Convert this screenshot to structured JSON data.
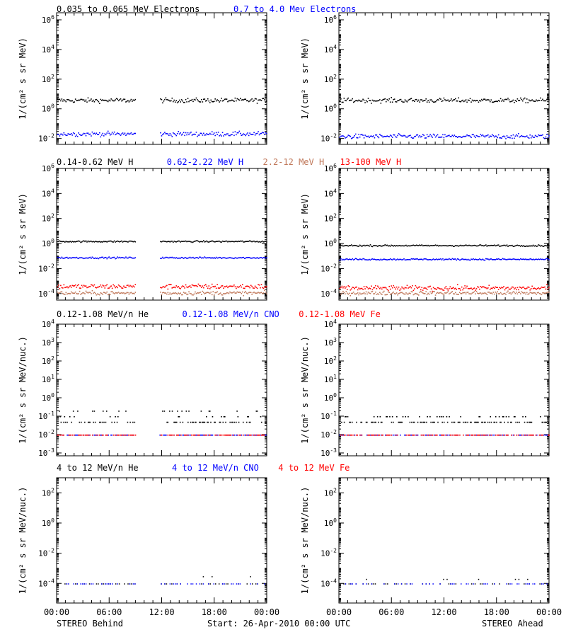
{
  "colors": {
    "black": "#000000",
    "blue": "#0000ff",
    "brown": "#c0785a",
    "red": "#ff0000",
    "magenta": "#a000a0"
  },
  "footer": {
    "left": "STEREO Behind",
    "center": "Start: 26-Apr-2010 00:00 UTC",
    "right": "STEREO Ahead"
  },
  "chart_data": [
    {
      "type": "scatter",
      "panel": "electrons",
      "spacecraft": "STEREO Behind",
      "title_items": [
        {
          "text": "0.035 to 0.065 MeV Electrons",
          "color": "#000000"
        },
        {
          "text": "0.7 to 4.0 Mev Electrons",
          "color": "#0000ff"
        }
      ],
      "ylabel": "1/(cm² s sr MeV)",
      "yscale": "log",
      "ylim": [
        0.004,
        3000000
      ],
      "yticks": [
        0.01,
        1,
        100,
        10000,
        1000000
      ],
      "xlim": [
        0,
        24
      ],
      "xtick_labels": [
        "00:00",
        "06:00",
        "12:00",
        "18:00",
        "00:00"
      ],
      "data_gap_hours": [
        9.0,
        11.7
      ],
      "series": [
        {
          "color": "#000000",
          "level": 4.0,
          "scatter_decades": 0.15
        },
        {
          "color": "#0000ff",
          "level": 0.022,
          "scatter_decades": 0.15
        }
      ]
    },
    {
      "type": "scatter",
      "panel": "electrons",
      "spacecraft": "STEREO Ahead",
      "ylabel": "1/(cm² s sr MeV)",
      "yscale": "log",
      "ylim": [
        0.004,
        3000000
      ],
      "yticks": [
        0.01,
        1,
        100,
        10000,
        1000000
      ],
      "xlim": [
        0,
        24
      ],
      "xtick_labels": [
        "00:00",
        "06:00",
        "12:00",
        "18:00",
        "00:00"
      ],
      "data_gap_hours": [],
      "series": [
        {
          "color": "#000000",
          "level": 4.0,
          "scatter_decades": 0.15
        },
        {
          "color": "#0000ff",
          "level": 0.015,
          "scatter_decades": 0.15
        }
      ]
    },
    {
      "type": "scatter",
      "panel": "protons",
      "spacecraft": "STEREO Behind",
      "title_items": [
        {
          "text": "0.14-0.62 MeV H",
          "color": "#000000"
        },
        {
          "text": "0.62-2.22 MeV H",
          "color": "#0000ff"
        },
        {
          "text": "2.2-12 MeV H",
          "color": "#c0785a"
        },
        {
          "text": "13-100 MeV H",
          "color": "#ff0000"
        }
      ],
      "ylabel": "1/(cm² s sr MeV)",
      "yscale": "log",
      "ylim": [
        3e-05,
        1000000
      ],
      "yticks": [
        0.0001,
        0.01,
        1,
        100,
        10000,
        1000000
      ],
      "xlim": [
        0,
        24
      ],
      "xtick_labels": [
        "00:00",
        "06:00",
        "12:00",
        "18:00",
        "00:00"
      ],
      "data_gap_hours": [
        9.0,
        11.7
      ],
      "series": [
        {
          "color": "#000000",
          "level": 1.6,
          "scatter_decades": 0.06
        },
        {
          "color": "#0000ff",
          "level": 0.08,
          "scatter_decades": 0.06
        },
        {
          "color": "#ff0000",
          "level": 0.0004,
          "scatter_decades": 0.2
        },
        {
          "color": "#c0785a",
          "level": 0.00012,
          "scatter_decades": 0.15
        }
      ]
    },
    {
      "type": "scatter",
      "panel": "protons",
      "spacecraft": "STEREO Ahead",
      "ylabel": "1/(cm² s sr MeV)",
      "yscale": "log",
      "ylim": [
        3e-05,
        1000000
      ],
      "yticks": [
        0.0001,
        0.01,
        1,
        100,
        10000,
        1000000
      ],
      "xlim": [
        0,
        24
      ],
      "xtick_labels": [
        "00:00",
        "06:00",
        "12:00",
        "18:00",
        "00:00"
      ],
      "data_gap_hours": [],
      "series": [
        {
          "color": "#000000",
          "level": 0.75,
          "scatter_decades": 0.06
        },
        {
          "color": "#0000ff",
          "level": 0.06,
          "scatter_decades": 0.06
        },
        {
          "color": "#ff0000",
          "level": 0.0003,
          "scatter_decades": 0.2
        },
        {
          "color": "#c0785a",
          "level": 0.00012,
          "scatter_decades": 0.15
        }
      ]
    },
    {
      "type": "scatter",
      "panel": "low_energy_ions",
      "spacecraft": "STEREO Behind",
      "title_items": [
        {
          "text": "0.12-1.08 MeV/n He",
          "color": "#000000"
        },
        {
          "text": "0.12-1.08 MeV/n CNO",
          "color": "#0000ff"
        },
        {
          "text": "0.12-1.08 MeV Fe",
          "color": "#ff0000"
        }
      ],
      "ylabel": "1/(cm² s sr MeV/nuc.)",
      "yscale": "log",
      "ylim": [
        0.0007,
        10000
      ],
      "yticks": [
        0.001,
        0.01,
        0.1,
        1,
        10,
        100,
        1000,
        10000
      ],
      "xlim": [
        0,
        24
      ],
      "xtick_labels": [
        "00:00",
        "06:00",
        "12:00",
        "18:00",
        "00:00"
      ],
      "data_gap_hours": [
        9.0,
        11.7
      ],
      "series": [
        {
          "color": "#000000",
          "levels": [
            0.05,
            0.1,
            0.2
          ],
          "mode": "quantized"
        },
        {
          "color": "#0000ff",
          "levels": [
            0.01
          ],
          "mode": "quantized"
        },
        {
          "color": "#ff0000",
          "levels": [
            0.01
          ],
          "mode": "quantized"
        }
      ]
    },
    {
      "type": "scatter",
      "panel": "low_energy_ions",
      "spacecraft": "STEREO Ahead",
      "ylabel": "1/(cm² s sr MeV/nuc.)",
      "yscale": "log",
      "ylim": [
        0.0007,
        10000
      ],
      "yticks": [
        0.001,
        0.01,
        0.1,
        1,
        10,
        100,
        1000,
        10000
      ],
      "xlim": [
        0,
        24
      ],
      "xtick_labels": [
        "00:00",
        "06:00",
        "12:00",
        "18:00",
        "00:00"
      ],
      "data_gap_hours": [],
      "series": [
        {
          "color": "#000000",
          "levels": [
            0.05,
            0.1
          ],
          "mode": "quantized"
        },
        {
          "color": "#0000ff",
          "levels": [
            0.01
          ],
          "mode": "quantized"
        },
        {
          "color": "#ff0000",
          "levels": [
            0.01
          ],
          "mode": "quantized"
        }
      ]
    },
    {
      "type": "scatter",
      "panel": "high_energy_ions",
      "spacecraft": "STEREO Behind",
      "title_items": [
        {
          "text": "4 to 12 MeV/n He",
          "color": "#000000"
        },
        {
          "text": "4 to 12 MeV/n CNO",
          "color": "#0000ff"
        },
        {
          "text": "4 to 12 MeV Fe",
          "color": "#ff0000"
        }
      ],
      "ylabel": "1/(cm² s sr MeV/nuc.)",
      "yscale": "log",
      "ylim": [
        5e-06,
        1000
      ],
      "yticks": [
        0.0001,
        0.01,
        1,
        100
      ],
      "xlim": [
        0,
        24
      ],
      "xtick_labels": [
        "00:00",
        "06:00",
        "12:00",
        "18:00",
        "00:00"
      ],
      "data_gap_hours": [
        9.0,
        11.7
      ],
      "series": [
        {
          "color": "#000000",
          "levels": [
            0.0001,
            0.0003
          ],
          "mode": "sparse"
        },
        {
          "color": "#0000ff",
          "levels": [
            0.0001
          ],
          "mode": "sparse"
        }
      ]
    },
    {
      "type": "scatter",
      "panel": "high_energy_ions",
      "spacecraft": "STEREO Ahead",
      "ylabel": "1/(cm² s sr MeV/nuc.)",
      "yscale": "log",
      "ylim": [
        5e-06,
        1000
      ],
      "yticks": [
        0.0001,
        0.01,
        1,
        100
      ],
      "xlim": [
        0,
        24
      ],
      "xtick_labels": [
        "00:00",
        "06:00",
        "12:00",
        "18:00",
        "00:00"
      ],
      "data_gap_hours": [],
      "series": [
        {
          "color": "#000000",
          "levels": [
            0.0001,
            0.0002
          ],
          "mode": "sparse"
        },
        {
          "color": "#0000ff",
          "levels": [
            0.0001
          ],
          "mode": "sparse"
        }
      ]
    }
  ]
}
